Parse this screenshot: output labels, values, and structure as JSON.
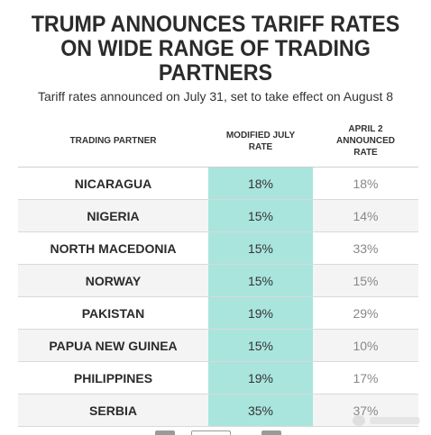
{
  "chart_data": {
    "type": "table",
    "title_lines": [
      "TRUMP ANNOUNCES TARIFF RATES",
      "ON WIDE RANGE OF TRADING",
      "PARTNERS"
    ],
    "subtitle": "Tariff rates announced on July 31, set to take effect on August 8",
    "columns": [
      [
        "TRADING PARTNER"
      ],
      [
        "MODIFIED JULY",
        "RATE"
      ],
      [
        "APRIL 2",
        "ANNOUNCED",
        "RATE"
      ]
    ],
    "rows": [
      {
        "partner": "NICARAGUA",
        "july": "18%",
        "april": "18%"
      },
      {
        "partner": "NIGERIA",
        "july": "15%",
        "april": "14%"
      },
      {
        "partner": "NORTH MACEDONIA",
        "july": "15%",
        "april": "33%"
      },
      {
        "partner": "NORWAY",
        "july": "15%",
        "april": "15%"
      },
      {
        "partner": "PAKISTAN",
        "july": "19%",
        "april": "29%"
      },
      {
        "partner": "PAPUA NEW GUINEA",
        "july": "15%",
        "april": "10%"
      },
      {
        "partner": "PHILIPPINES",
        "july": "19%",
        "april": "17%"
      },
      {
        "partner": "SERBIA",
        "july": "35%",
        "april": "37%"
      }
    ],
    "colors": {
      "highlight": "#a9e5dd",
      "stripe": "#f4f4f4"
    }
  }
}
